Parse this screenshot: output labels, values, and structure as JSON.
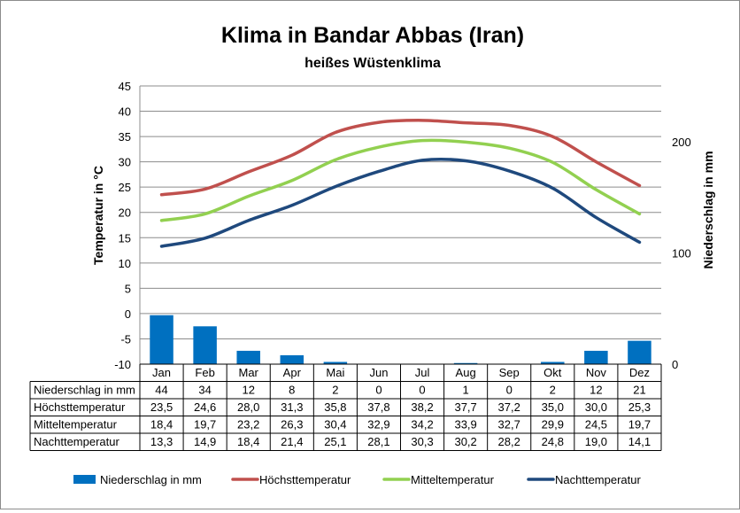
{
  "chart_data": {
    "type": "bar+line",
    "title": "Klima in Bandar Abbas (Iran)",
    "subtitle": "heißes Wüstenklima",
    "ylabel_left": "Temperatur in °C",
    "ylabel_right": "Niederschlag in mm",
    "ylim_left": [
      -10,
      45
    ],
    "yticks_left": [
      "45",
      "40",
      "35",
      "30",
      "25",
      "20",
      "15",
      "10",
      "5",
      "0",
      "-5",
      "-10"
    ],
    "ylim_right": [
      0,
      250
    ],
    "yticks_right": [
      "200",
      "100",
      "0"
    ],
    "categories": [
      "Jan",
      "Feb",
      "Mar",
      "Apr",
      "Mai",
      "Jun",
      "Jul",
      "Aug",
      "Sep",
      "Okt",
      "Nov",
      "Dez"
    ],
    "grid": "horizontal",
    "legend_position": "bottom",
    "series": [
      {
        "name": "Niederschlag in mm",
        "type": "bar",
        "axis": "right",
        "color": "#0070c0",
        "values": [
          44,
          34,
          12,
          8,
          2,
          0,
          0,
          1,
          0,
          2,
          12,
          21
        ],
        "labels": [
          "44",
          "34",
          "12",
          "8",
          "2",
          "0",
          "0",
          "1",
          "0",
          "2",
          "12",
          "21"
        ]
      },
      {
        "name": "Höchsttemperatur",
        "type": "line",
        "axis": "left",
        "color": "#c0504d",
        "values": [
          23.5,
          24.6,
          28.0,
          31.3,
          35.8,
          37.8,
          38.2,
          37.7,
          37.2,
          35.0,
          30.0,
          25.3
        ],
        "labels": [
          "23,5",
          "24,6",
          "28,0",
          "31,3",
          "35,8",
          "37,8",
          "38,2",
          "37,7",
          "37,2",
          "35,0",
          "30,0",
          "25,3"
        ]
      },
      {
        "name": "Mitteltemperatur",
        "type": "line",
        "axis": "left",
        "color": "#92d050",
        "values": [
          18.4,
          19.7,
          23.2,
          26.3,
          30.4,
          32.9,
          34.2,
          33.9,
          32.7,
          29.9,
          24.5,
          19.7
        ],
        "labels": [
          "18,4",
          "19,7",
          "23,2",
          "26,3",
          "30,4",
          "32,9",
          "34,2",
          "33,9",
          "32,7",
          "29,9",
          "24,5",
          "19,7"
        ]
      },
      {
        "name": "Nachttemperatur",
        "type": "line",
        "axis": "left",
        "color": "#1f497d",
        "values": [
          13.3,
          14.9,
          18.4,
          21.4,
          25.1,
          28.1,
          30.3,
          30.2,
          28.2,
          24.8,
          19.0,
          14.1
        ],
        "labels": [
          "13,3",
          "14,9",
          "18,4",
          "21,4",
          "25,1",
          "28,1",
          "30,3",
          "30,2",
          "28,2",
          "24,8",
          "19,0",
          "14,1"
        ]
      }
    ]
  }
}
